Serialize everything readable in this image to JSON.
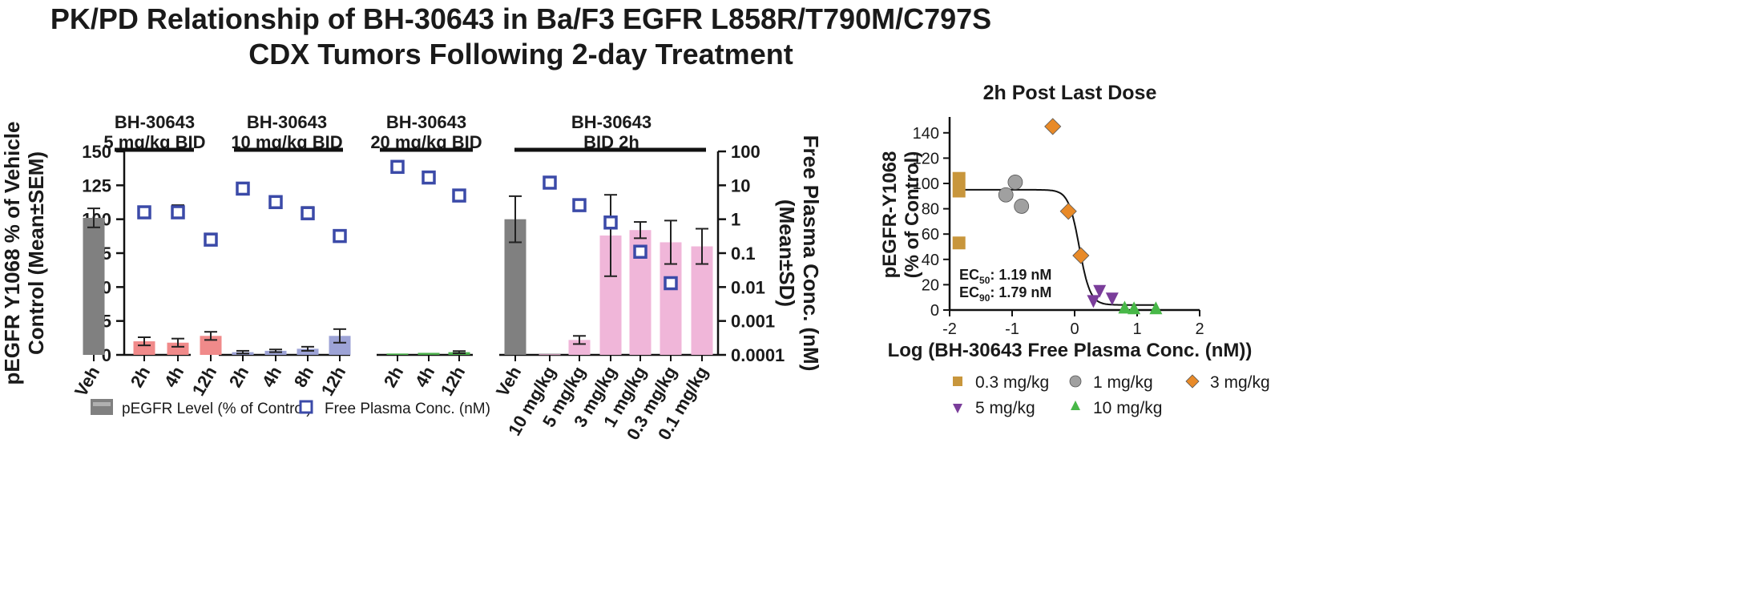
{
  "title": {
    "line1": "PK/PD Relationship of BH-30643 in Ba/F3 EGFR L858R/T790M/C797S",
    "line2": "CDX Tumors Following 2-day Treatment"
  },
  "colors": {
    "vehicle": "#808080",
    "dose_5": "#f08a8a",
    "dose_10": "#9da3d6",
    "dose_20": "#4db04d",
    "bid2h": "#f0b6d9",
    "plasma_marker": "#3b4aa8",
    "s_03": "#c8963c",
    "s_1": "#a0a0a0",
    "s_3": "#e88a28",
    "s_5": "#7a3d9a",
    "s_10": "#48b848"
  },
  "chart_data": [
    {
      "type": "bar",
      "title": "",
      "ylabel": "pEGFR Y1068 % of Vehicle Control (Mean±SEM)",
      "y2label": "Free Plasma Conc. (nM) (Mean±SD)",
      "ylim": [
        0,
        150
      ],
      "yticks": [
        "0",
        "25",
        "50",
        "75",
        "100",
        "125",
        "150"
      ],
      "y2scale": "log",
      "y2lim": [
        0.0001,
        100
      ],
      "y2ticks": [
        "0.0001",
        "0.001",
        "0.01",
        "0.1",
        "1",
        "10",
        "100"
      ],
      "groups": [
        {
          "label": "BH-30643",
          "sublabel": "5 mg/kg BID"
        },
        {
          "label": "BH-30643",
          "sublabel": "10 mg/kg BID"
        },
        {
          "label": "BH-30643",
          "sublabel": "20 mg/kg BID"
        },
        {
          "label": "BH-30643",
          "sublabel": "BID 2h"
        }
      ],
      "categories": [
        {
          "label": "Veh",
          "group": 0,
          "color": "vehicle",
          "value": 101,
          "err": 7,
          "conc": null
        },
        {
          "label": "2h",
          "group": 0,
          "color": "dose_5",
          "value": 10,
          "err": 3,
          "conc": 1.6,
          "conc_err_up": 0
        },
        {
          "label": "4h",
          "group": 0,
          "color": "dose_5",
          "value": 9,
          "err": 3,
          "conc": 1.6,
          "conc_err_up": 1.0
        },
        {
          "label": "12h",
          "group": 0,
          "color": "dose_5",
          "value": 14,
          "err": 3,
          "conc": 0.25,
          "conc_err_up": 0.13
        },
        {
          "label": "2h",
          "group": 1,
          "color": "dose_10",
          "value": 2,
          "err": 1,
          "conc": 8,
          "conc_err_up": 3
        },
        {
          "label": "4h",
          "group": 1,
          "color": "dose_10",
          "value": 3,
          "err": 1,
          "conc": 3.2,
          "conc_err_up": 0
        },
        {
          "label": "8h",
          "group": 1,
          "color": "dose_10",
          "value": 4.5,
          "err": 1.5,
          "conc": 1.5,
          "conc_err_up": 0.8
        },
        {
          "label": "12h",
          "group": 1,
          "color": "dose_10",
          "value": 14,
          "err": 5,
          "conc": 0.32,
          "conc_err_up": 0
        },
        {
          "label": "2h",
          "group": 2,
          "color": "dose_20",
          "value": 1,
          "err": 0,
          "conc": 35,
          "conc_err_up": 0
        },
        {
          "label": "4h",
          "group": 2,
          "color": "dose_20",
          "value": 1.5,
          "err": 0,
          "conc": 17,
          "conc_err_up": 0
        },
        {
          "label": "12h",
          "group": 2,
          "color": "dose_20",
          "value": 2,
          "err": 0.8,
          "conc": 5,
          "conc_err_up": 0
        },
        {
          "label": "Veh",
          "group": 3,
          "color": "vehicle",
          "value": 100,
          "err": 17,
          "conc": null
        },
        {
          "label": "10 mg/kg",
          "group": 3,
          "color": "bid2h",
          "value": 0.5,
          "err": 0,
          "conc": 12,
          "conc_err_up": 5
        },
        {
          "label": "5 mg/kg",
          "group": 3,
          "color": "bid2h",
          "value": 11,
          "err": 3,
          "conc": 2.6,
          "conc_err_up": 0
        },
        {
          "label": "3 mg/kg",
          "group": 3,
          "color": "bid2h",
          "value": 88,
          "err": 30,
          "conc": 0.8,
          "conc_err_up": 0
        },
        {
          "label": "1 mg/kg",
          "group": 3,
          "color": "bid2h",
          "value": 92,
          "err": 6,
          "conc": 0.11,
          "conc_err_up": 0
        },
        {
          "label": "0.3 mg/kg",
          "group": 3,
          "color": "bid2h",
          "value": 83,
          "err": 16,
          "conc": 0.013,
          "conc_err_up": 0
        },
        {
          "label": "0.1 mg/kg",
          "group": 3,
          "color": "bid2h",
          "value": 80,
          "err": 13,
          "conc": null
        }
      ],
      "legend": [
        {
          "label": "pEGFR Level (% of Control)",
          "symbol": "bar"
        },
        {
          "label": "Free Plasma Conc. (nM)",
          "symbol": "open-square"
        }
      ]
    },
    {
      "type": "scatter",
      "title": "2h Post Last Dose",
      "xlabel": "Log (BH-30643 Free Plasma Conc. (nM))",
      "ylabel": "pEGFR-Y1068",
      "ylabel2": "(% of Control)",
      "xlim": [
        -2,
        2
      ],
      "ylim": [
        0,
        150
      ],
      "xticks": [
        "-2",
        "-1",
        "0",
        "1",
        "2"
      ],
      "yticks": [
        "0",
        "20",
        "40",
        "60",
        "80",
        "100",
        "120",
        "140"
      ],
      "annotations": [
        {
          "prefix": "EC",
          "sub": "50",
          "text": ": 1.19 nM"
        },
        {
          "prefix": "EC",
          "sub": "90",
          "text": ": 1.79 nM"
        }
      ],
      "fit": {
        "top": 95,
        "bottom": 4,
        "log_ec50": 0.0755,
        "hill": 5
      },
      "series": [
        {
          "name": "0.3 mg/kg",
          "color": "s_03",
          "marker": "square",
          "points": [
            [
              -1.85,
              104
            ],
            [
              -1.85,
              94
            ],
            [
              -1.85,
              53
            ]
          ]
        },
        {
          "name": "1 mg/kg",
          "color": "s_1",
          "marker": "circle",
          "points": [
            [
              -1.1,
              91
            ],
            [
              -0.95,
              101
            ],
            [
              -0.85,
              82
            ]
          ]
        },
        {
          "name": "3 mg/kg",
          "color": "s_3",
          "marker": "diamond",
          "points": [
            [
              -0.35,
              145
            ],
            [
              -0.1,
              78
            ],
            [
              0.1,
              43
            ]
          ]
        },
        {
          "name": "5 mg/kg",
          "color": "s_5",
          "marker": "triangle-down",
          "points": [
            [
              0.3,
              8
            ],
            [
              0.4,
              16
            ],
            [
              0.6,
              10
            ]
          ]
        },
        {
          "name": "10 mg/kg",
          "color": "s_10",
          "marker": "triangle-up",
          "points": [
            [
              0.8,
              1
            ],
            [
              0.95,
              0.5
            ],
            [
              1.3,
              0.5
            ]
          ]
        }
      ]
    }
  ]
}
